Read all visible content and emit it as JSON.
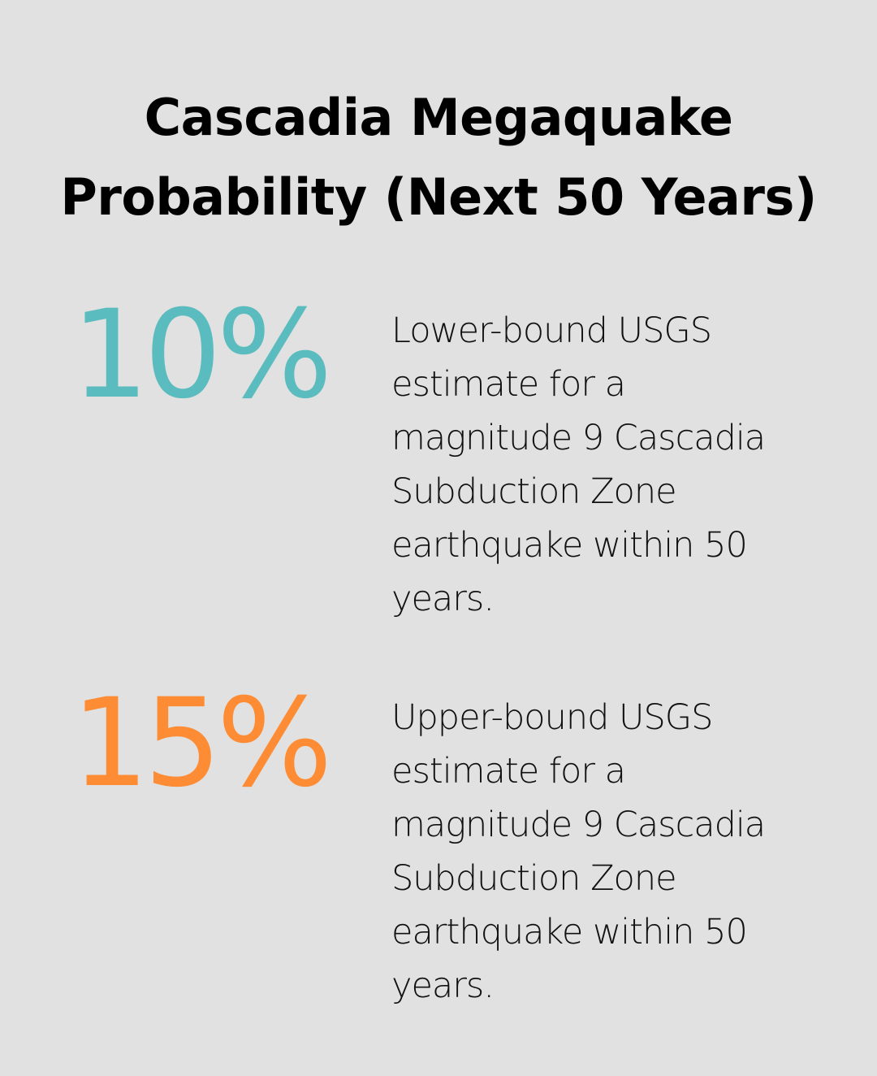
{
  "title": "Cascadia Megaquake Probability (Next 50 Years)",
  "colors": {
    "background": "#e0e1e0",
    "teal": "#5bbcbf",
    "orange": "#fd8c35",
    "text": "#000000"
  },
  "stats": [
    {
      "value": "10%",
      "color": "#5bbcbf",
      "description": "Lower-bound USGS estimate for a magnitude 9 Cascadia Subduction Zone earthquake within 50 years."
    },
    {
      "value": "15%",
      "color": "#fd8c35",
      "description": "Upper-bound USGS estimate for a magnitude 9 Cascadia Subduction Zone earthquake within 50 years."
    }
  ]
}
